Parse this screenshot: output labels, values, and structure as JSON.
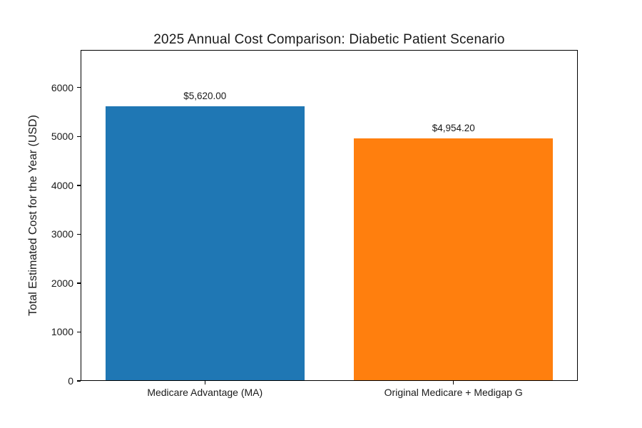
{
  "chart_data": {
    "type": "bar",
    "title": "2025 Annual Cost Comparison: Diabetic Patient Scenario",
    "xlabel": "",
    "ylabel": "Total Estimated Cost for the Year (USD)",
    "categories": [
      "Medicare Advantage (MA)",
      "Original Medicare + Medigap G"
    ],
    "values": [
      5620.0,
      4954.2
    ],
    "bar_labels": [
      "$5,620.00",
      "$4,954.20"
    ],
    "bar_colors": [
      "#1f77b4",
      "#ff7f0e"
    ],
    "yticks": [
      0,
      1000,
      2000,
      3000,
      4000,
      5000,
      6000
    ],
    "ylim": [
      0,
      6770
    ],
    "xlim": [
      -0.5,
      1.5
    ],
    "bar_width_units": 0.8,
    "grid": false,
    "legend_position": "none",
    "background_color": "#ffffff",
    "text_color": "#1a1a1a",
    "spine_color": "#000000"
  }
}
